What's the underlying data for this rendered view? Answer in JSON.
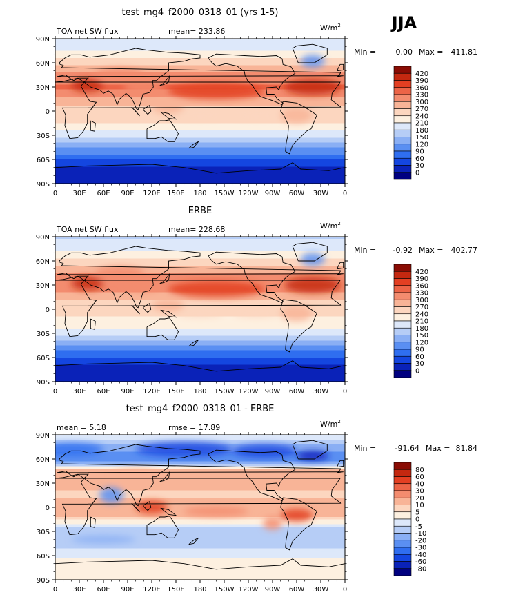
{
  "season": "JJA",
  "unit_base": "W/m",
  "unit_exp": "2",
  "x_ticks": [
    "0",
    "30E",
    "60E",
    "90E",
    "120E",
    "150E",
    "180",
    "150W",
    "120W",
    "90W",
    "60W",
    "30W",
    "0"
  ],
  "y_ticks": [
    "90N",
    "60N",
    "30N",
    "0",
    "30S",
    "60S",
    "90S"
  ],
  "colors": {
    "full": [
      "#000080",
      "#0a22b8",
      "#1446e0",
      "#2f6ef0",
      "#5a8ff2",
      "#8aaff4",
      "#b6cdf6",
      "#dde8fa",
      "#fdf0e0",
      "#fcd6bf",
      "#f8b497",
      "#f38c6f",
      "#ec6447",
      "#e33f22",
      "#c42810",
      "#8a0c04"
    ],
    "diff": [
      "#000080",
      "#0a22b8",
      "#1446e0",
      "#2f6ef0",
      "#5a8ff2",
      "#8aaff4",
      "#b6cdf6",
      "#dde8fa",
      "#fdf0e0",
      "#fcd6bf",
      "#f8b497",
      "#f38c6f",
      "#ec6447",
      "#e33f22",
      "#c42810",
      "#8a0c04"
    ]
  },
  "chart_data": [
    {
      "type": "heatmap",
      "title": "test_mg4_f2000_0318_01 (yrs 1-5)",
      "left_label": "TOA net SW flux",
      "center_label": "mean=  233.86",
      "min_label": "Min =",
      "min_value": "0.00",
      "max_label": "Max =",
      "max_value": "411.81",
      "xlim": [
        0,
        360
      ],
      "ylim": [
        -90,
        90
      ],
      "colorbar_labels": [
        "420",
        "390",
        "360",
        "330",
        "300",
        "270",
        "240",
        "210",
        "180",
        "150",
        "120",
        "90",
        "60",
        "30",
        "0"
      ],
      "zonal_profile": [
        [
          -90,
          0
        ],
        [
          -75,
          10
        ],
        [
          -60,
          55
        ],
        [
          -45,
          125
        ],
        [
          -30,
          195
        ],
        [
          -15,
          240
        ],
        [
          0,
          255
        ],
        [
          15,
          290
        ],
        [
          30,
          335
        ],
        [
          45,
          305
        ],
        [
          60,
          255
        ],
        [
          75,
          205
        ],
        [
          90,
          180
        ]
      ]
    },
    {
      "type": "heatmap",
      "title": "ERBE",
      "left_label": "TOA net SW flux",
      "center_label": "mean=  228.68",
      "min_label": "Min =",
      "min_value": "-0.92",
      "max_label": "Max =",
      "max_value": "402.77",
      "xlim": [
        0,
        360
      ],
      "ylim": [
        -90,
        90
      ],
      "colorbar_labels": [
        "420",
        "390",
        "360",
        "330",
        "300",
        "270",
        "240",
        "210",
        "180",
        "150",
        "120",
        "90",
        "60",
        "30",
        "0"
      ],
      "zonal_profile": [
        [
          -90,
          0
        ],
        [
          -75,
          10
        ],
        [
          -60,
          55
        ],
        [
          -45,
          120
        ],
        [
          -30,
          190
        ],
        [
          -15,
          235
        ],
        [
          0,
          245
        ],
        [
          15,
          280
        ],
        [
          30,
          330
        ],
        [
          45,
          300
        ],
        [
          60,
          250
        ],
        [
          75,
          200
        ],
        [
          90,
          175
        ]
      ]
    },
    {
      "type": "heatmap",
      "title": "test_mg4_f2000_0318_01 - ERBE",
      "left_label": "mean =    5.18",
      "center_label": "rmse =   17.89",
      "min_label": "Min =",
      "min_value": "-91.64",
      "max_label": "Max =",
      "max_value": " 81.84",
      "xlim": [
        0,
        360
      ],
      "ylim": [
        -90,
        90
      ],
      "colorbar_labels": [
        "80",
        "60",
        "40",
        "30",
        "20",
        "10",
        "5",
        "0",
        "-5",
        "-10",
        "-20",
        "-30",
        "-40",
        "-60",
        "-80"
      ],
      "zonal_profile": [
        [
          -90,
          0
        ],
        [
          -70,
          3
        ],
        [
          -50,
          -6
        ],
        [
          -30,
          -10
        ],
        [
          -10,
          12
        ],
        [
          0,
          18
        ],
        [
          15,
          8
        ],
        [
          30,
          14
        ],
        [
          45,
          16
        ],
        [
          60,
          -30
        ],
        [
          75,
          -12
        ],
        [
          90,
          0
        ]
      ]
    }
  ]
}
